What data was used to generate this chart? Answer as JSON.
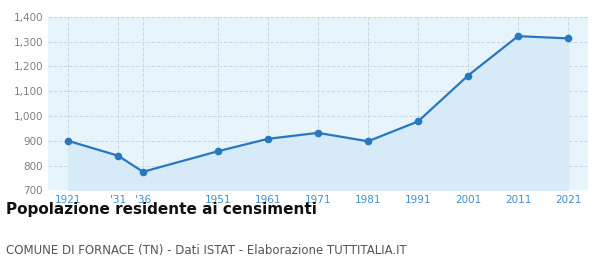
{
  "years": [
    1921,
    1931,
    1936,
    1951,
    1961,
    1971,
    1981,
    1991,
    2001,
    2011,
    2021
  ],
  "population": [
    900,
    840,
    775,
    858,
    908,
    932,
    898,
    978,
    1163,
    1322,
    1313
  ],
  "x_labels": [
    "1921",
    "'31",
    "'36",
    "1951",
    "1961",
    "1971",
    "1981",
    "1991",
    "2001",
    "2011",
    "2021"
  ],
  "ylim": [
    700,
    1400
  ],
  "yticks": [
    700,
    800,
    900,
    1000,
    1100,
    1200,
    1300,
    1400
  ],
  "ytick_labels": [
    "700",
    "800",
    "900",
    "1,000",
    "1,100",
    "1,200",
    "1,300",
    "1,400"
  ],
  "line_color": "#2878c0",
  "fill_color": "#d6eaf8",
  "marker_color": "#2878c0",
  "background_color": "#ffffff",
  "plot_bg_color": "#e8f4fb",
  "grid_color": "#c8d8e8",
  "xtick_color": "#4090d0",
  "ytick_color": "#808080",
  "title": "Popolazione residente ai censimenti",
  "subtitle": "COMUNE DI FORNACE (TN) - Dati ISTAT - Elaborazione TUTTITALIA.IT",
  "title_fontsize": 11,
  "subtitle_fontsize": 8.5
}
